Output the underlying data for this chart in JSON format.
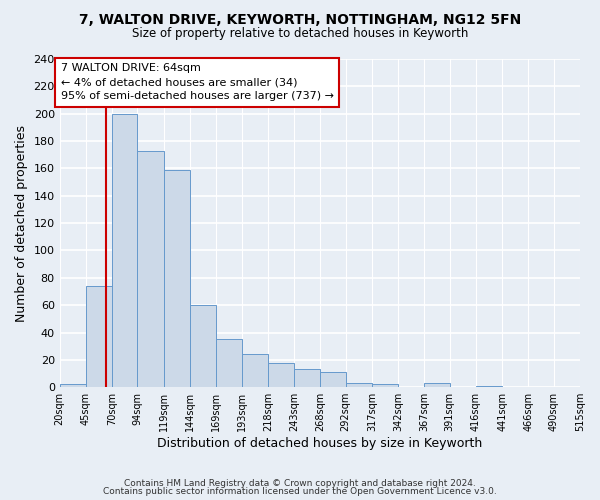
{
  "title1": "7, WALTON DRIVE, KEYWORTH, NOTTINGHAM, NG12 5FN",
  "title2": "Size of property relative to detached houses in Keyworth",
  "xlabel": "Distribution of detached houses by size in Keyworth",
  "ylabel": "Number of detached properties",
  "bin_labels": [
    "20sqm",
    "45sqm",
    "70sqm",
    "94sqm",
    "119sqm",
    "144sqm",
    "169sqm",
    "193sqm",
    "218sqm",
    "243sqm",
    "268sqm",
    "292sqm",
    "317sqm",
    "342sqm",
    "367sqm",
    "391sqm",
    "416sqm",
    "441sqm",
    "466sqm",
    "490sqm",
    "515sqm"
  ],
  "bin_edges": [
    20,
    45,
    70,
    94,
    119,
    144,
    169,
    193,
    218,
    243,
    268,
    292,
    317,
    342,
    367,
    391,
    416,
    441,
    466,
    490,
    515
  ],
  "bar_heights": [
    2,
    74,
    200,
    173,
    159,
    60,
    35,
    24,
    18,
    13,
    11,
    3,
    2,
    0,
    3,
    0,
    1,
    0,
    0,
    0
  ],
  "bar_facecolor": "#ccd9e8",
  "bar_edgecolor": "#6699cc",
  "reference_line_x": 64,
  "reference_line_color": "#cc0000",
  "annotation_line1": "7 WALTON DRIVE: 64sqm",
  "annotation_line2": "← 4% of detached houses are smaller (34)",
  "annotation_line3": "95% of semi-detached houses are larger (737) →",
  "annotation_box_edgecolor": "#cc0000",
  "annotation_box_facecolor": "#ffffff",
  "ylim": [
    0,
    240
  ],
  "yticks": [
    0,
    20,
    40,
    60,
    80,
    100,
    120,
    140,
    160,
    180,
    200,
    220,
    240
  ],
  "footer1": "Contains HM Land Registry data © Crown copyright and database right 2024.",
  "footer2": "Contains public sector information licensed under the Open Government Licence v3.0.",
  "bg_color": "#e8eef5",
  "plot_bg_color": "#e8eef5",
  "grid_color": "#ffffff"
}
